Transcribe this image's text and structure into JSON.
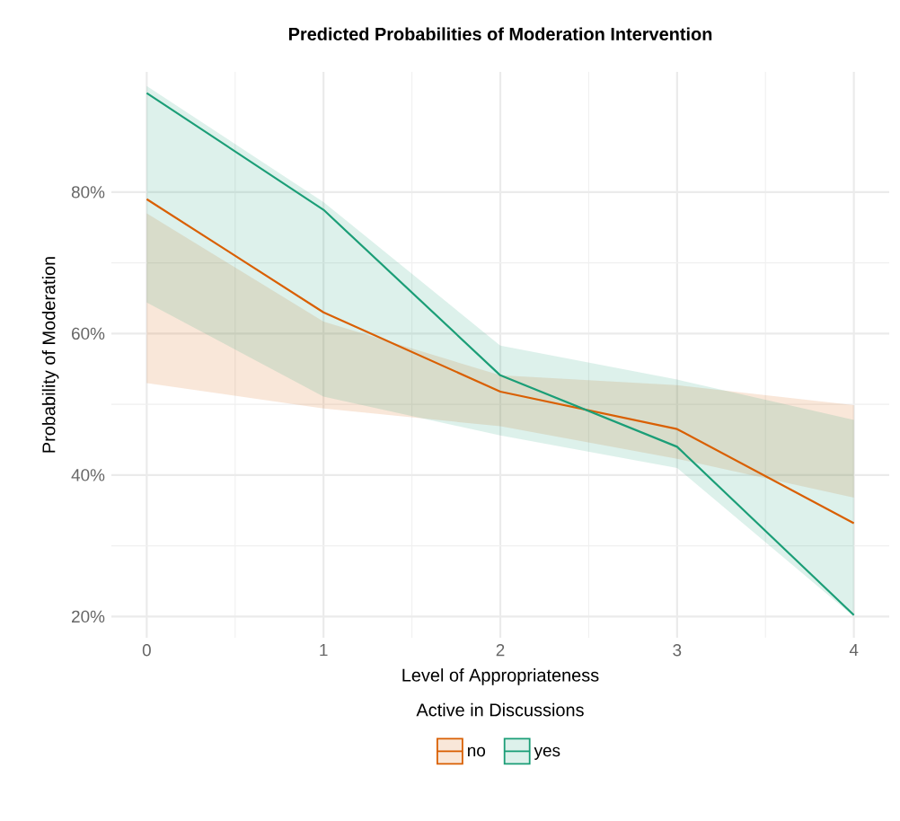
{
  "chart_data": {
    "type": "line",
    "title": "Predicted Probabilities of Moderation Intervention",
    "xlabel": "Level of Appropriateness",
    "ylabel": "Probability of Moderation",
    "legend_title": "Active in Discussions",
    "legend": "bottom",
    "grid": true,
    "x": [
      0,
      1,
      2,
      3,
      4
    ],
    "xlim": [
      -0.2,
      4.2
    ],
    "xticks": [
      0,
      1,
      2,
      3,
      4
    ],
    "ylim": [
      17,
      97
    ],
    "yticks": [
      {
        "value": 20,
        "label": "20%"
      },
      {
        "value": 40,
        "label": "40%"
      },
      {
        "value": 60,
        "label": "60%"
      },
      {
        "value": 80,
        "label": "80%"
      }
    ],
    "series": [
      {
        "name": "no",
        "color": "#d95f02",
        "values": [
          79.0,
          63.0,
          51.8,
          46.5,
          33.2
        ],
        "lower": [
          53.0,
          49.4,
          46.9,
          42.3,
          36.8
        ],
        "upper": [
          77.0,
          61.7,
          54.1,
          52.7,
          49.9
        ]
      },
      {
        "name": "yes",
        "color": "#1b9e77",
        "values": [
          94.0,
          77.5,
          54.1,
          44.0,
          20.2
        ],
        "lower": [
          64.4,
          51.1,
          45.6,
          41.0,
          20.0
        ],
        "upper": [
          95.0,
          78.6,
          58.3,
          53.5,
          47.8
        ]
      }
    ]
  }
}
